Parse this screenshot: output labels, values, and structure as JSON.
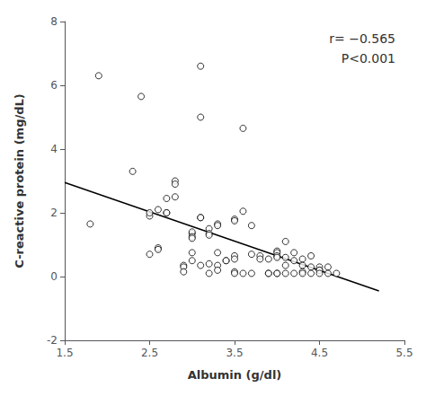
{
  "chart_data": {
    "type": "scatter",
    "xlabel": "Albumin (g/dl)",
    "ylabel": "C-reactive protein (mg/dL)",
    "annotations": [
      "r= −0.565",
      "P<0.001"
    ],
    "xlim": [
      1.5,
      5.5
    ],
    "xticks": [
      1.5,
      2.5,
      3.5,
      4.5,
      5.5
    ],
    "ylim": [
      -2,
      8
    ],
    "yticks": [
      -2,
      0,
      2,
      4,
      6,
      8
    ],
    "grid": false,
    "series": [
      {
        "type": "scatter",
        "color": "black",
        "marker": "open_circle",
        "x": [
          1.8,
          1.9,
          2.3,
          2.4,
          2.5,
          2.5,
          2.5,
          2.6,
          2.6,
          2.6,
          2.7,
          2.7,
          2.7,
          2.8,
          2.8,
          2.8,
          2.9,
          2.9,
          2.9,
          3.0,
          3.0,
          3.0,
          3.0,
          3.0,
          3.0,
          3.1,
          3.1,
          3.1,
          3.1,
          3.1,
          3.2,
          3.2,
          3.2,
          3.2,
          3.2,
          3.3,
          3.3,
          3.3,
          3.3,
          3.3,
          3.4,
          3.4,
          3.5,
          3.5,
          3.5,
          3.5,
          3.5,
          3.5,
          3.6,
          3.6,
          3.6,
          3.7,
          3.7,
          3.7,
          3.8,
          3.8,
          3.9,
          3.9,
          3.9,
          4.0,
          4.0,
          4.0,
          4.0,
          4.0,
          4.0,
          4.1,
          4.1,
          4.1,
          4.1,
          4.2,
          4.2,
          4.2,
          4.3,
          4.3,
          4.3,
          4.3,
          4.4,
          4.4,
          4.4,
          4.5,
          4.5,
          4.5,
          4.5,
          4.6,
          4.6,
          4.7
        ],
        "values": [
          1.65,
          6.3,
          3.3,
          5.65,
          1.9,
          2.0,
          0.7,
          2.1,
          0.9,
          0.85,
          2.45,
          2.0,
          2.0,
          3.0,
          2.9,
          2.5,
          0.35,
          0.3,
          0.15,
          1.35,
          1.4,
          1.25,
          1.2,
          0.75,
          0.5,
          6.6,
          5.0,
          1.85,
          1.85,
          0.35,
          1.5,
          1.35,
          1.3,
          0.4,
          0.1,
          1.65,
          1.6,
          0.75,
          0.35,
          0.2,
          0.5,
          0.5,
          1.8,
          1.75,
          0.65,
          0.55,
          0.15,
          0.1,
          4.65,
          2.05,
          0.1,
          1.6,
          0.7,
          0.1,
          0.65,
          0.55,
          0.55,
          0.1,
          0.1,
          0.8,
          0.75,
          0.65,
          0.6,
          0.1,
          0.1,
          1.1,
          0.6,
          0.35,
          0.1,
          0.75,
          0.5,
          0.1,
          0.55,
          0.35,
          0.15,
          0.1,
          0.65,
          0.3,
          0.1,
          0.3,
          0.2,
          0.2,
          0.1,
          0.3,
          0.1,
          0.1
        ]
      },
      {
        "type": "line",
        "color": "black",
        "line_style": "solid",
        "x": [
          1.5,
          5.2
        ],
        "values": [
          2.95,
          -0.45
        ]
      }
    ]
  }
}
